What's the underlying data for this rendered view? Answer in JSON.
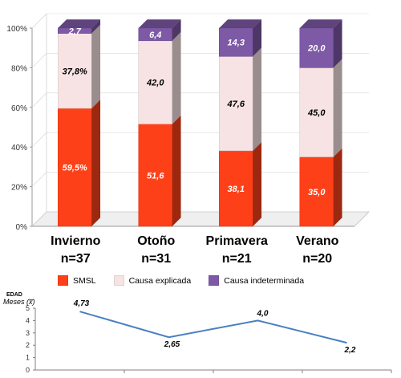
{
  "chart_data": [
    {
      "type": "bar",
      "stacked": true,
      "categories": [
        "Invierno",
        "Otoño",
        "Primavera",
        "Verano"
      ],
      "sample_sizes": [
        "n=37",
        "n=31",
        "n=21",
        "n=20"
      ],
      "yticks": [
        "0%",
        "20%",
        "40%",
        "60%",
        "80%",
        "100%"
      ],
      "ylim": [
        0,
        100
      ],
      "series": [
        {
          "name": "SMSL",
          "color": "#fe4019",
          "values": [
            59.5,
            51.6,
            38.1,
            35.0
          ],
          "labels": [
            "59,5%",
            "51,6",
            "38,1",
            "35,0"
          ]
        },
        {
          "name": "Causa explicada",
          "color": "#f7e3e3",
          "values": [
            37.8,
            42.0,
            47.6,
            45.0
          ],
          "labels": [
            "37,8%",
            "42,0",
            "47,6",
            "45,0"
          ]
        },
        {
          "name": "Causa indeterminada",
          "color": "#7d59a6",
          "values": [
            2.7,
            6.4,
            14.3,
            20.0
          ],
          "labels": [
            "2,7",
            "6,4",
            "14,3",
            "20,0"
          ]
        }
      ],
      "legend_position": "bottom"
    },
    {
      "type": "line",
      "header": "EDAD",
      "ylabel": "Meses (x̅)",
      "ylim": [
        0,
        5
      ],
      "yticks": [
        "0",
        "1",
        "2",
        "3",
        "4",
        "5"
      ],
      "values": [
        4.73,
        2.65,
        4.0,
        2.2
      ],
      "labels": [
        "4,73",
        "2,65",
        "4,0",
        "2,2"
      ],
      "color": "#4a7fc1"
    }
  ]
}
